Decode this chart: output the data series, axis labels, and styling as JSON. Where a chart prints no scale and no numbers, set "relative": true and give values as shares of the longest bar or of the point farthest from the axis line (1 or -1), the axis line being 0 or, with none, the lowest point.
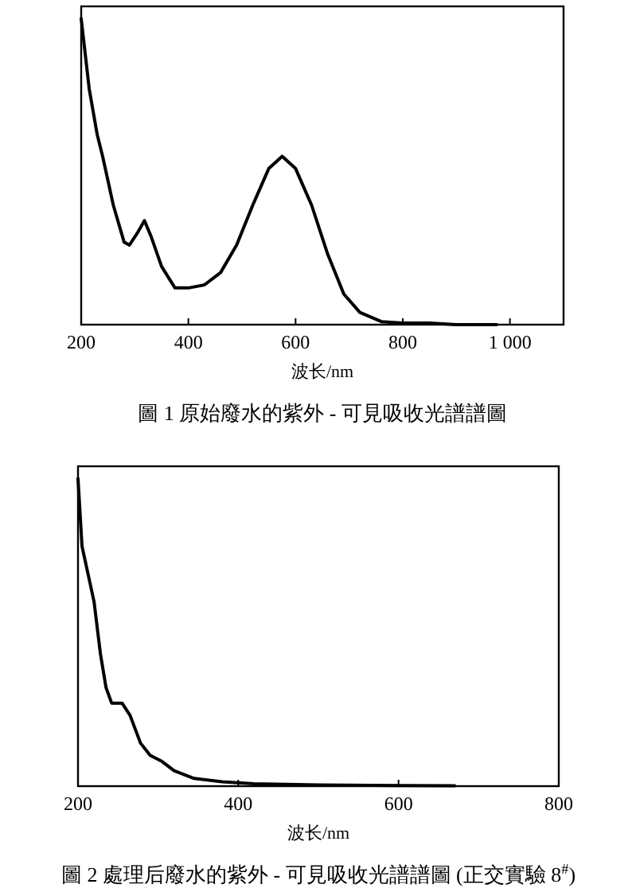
{
  "chart_data": [
    {
      "type": "line",
      "relative": true,
      "title": "圖 1  原始廢水的紫外 - 可見吸收光譜譜圖",
      "xlabel": "波长/nm",
      "xlim": [
        200,
        1100
      ],
      "xticks": [
        200,
        400,
        600,
        800,
        {
          "value": 1000,
          "label": "1 000"
        }
      ],
      "color": "#000000",
      "x": [
        200,
        215,
        230,
        240,
        260,
        280,
        290,
        305,
        318,
        330,
        350,
        375,
        400,
        430,
        460,
        490,
        520,
        550,
        575,
        600,
        630,
        660,
        690,
        720,
        760,
        800,
        850,
        900,
        975
      ],
      "values": [
        1.0,
        0.77,
        0.62,
        0.55,
        0.39,
        0.27,
        0.26,
        0.3,
        0.34,
        0.29,
        0.19,
        0.12,
        0.12,
        0.13,
        0.17,
        0.26,
        0.39,
        0.51,
        0.55,
        0.51,
        0.39,
        0.23,
        0.1,
        0.04,
        0.01,
        0.005,
        0.005,
        0,
        0
      ]
    },
    {
      "type": "line",
      "relative": true,
      "title": "圖 2  處理后廢水的紫外 - 可見吸收光譜譜圖 (正交實驗 8$^{#}$)",
      "xlabel": "波长/nm",
      "xlim": [
        200,
        800
      ],
      "xticks": [
        200,
        400,
        600,
        800
      ],
      "color": "#000000",
      "x": [
        200,
        205,
        215,
        220,
        228,
        235,
        242,
        255,
        265,
        278,
        290,
        305,
        320,
        345,
        380,
        420,
        500,
        600,
        670
      ],
      "values": [
        1.0,
        0.78,
        0.66,
        0.6,
        0.43,
        0.32,
        0.27,
        0.27,
        0.23,
        0.14,
        0.1,
        0.08,
        0.05,
        0.025,
        0.014,
        0.008,
        0.004,
        0.002,
        0.001
      ]
    }
  ]
}
